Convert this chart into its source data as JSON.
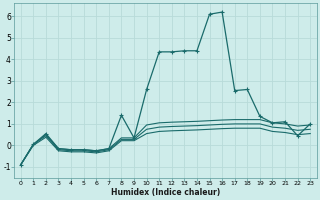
{
  "xlabel": "Humidex (Indice chaleur)",
  "bg_color": "#ceecea",
  "grid_color": "#b8dbd9",
  "line_color": "#1a6b6b",
  "xlim": [
    -0.5,
    23.5
  ],
  "ylim": [
    -1.5,
    6.6
  ],
  "xticks": [
    0,
    1,
    2,
    3,
    4,
    5,
    6,
    7,
    8,
    9,
    10,
    11,
    12,
    13,
    14,
    15,
    16,
    17,
    18,
    19,
    20,
    21,
    22,
    23
  ],
  "yticks": [
    -1,
    0,
    1,
    2,
    3,
    4,
    5,
    6
  ],
  "series_main": {
    "x": [
      0,
      1,
      2,
      3,
      4,
      5,
      6,
      7,
      8,
      9,
      10,
      11,
      12,
      13,
      14,
      15,
      16,
      17,
      18,
      19,
      20,
      21,
      22,
      23
    ],
    "y": [
      -0.9,
      0.05,
      0.55,
      -0.15,
      -0.2,
      -0.2,
      -0.25,
      -0.15,
      1.4,
      0.35,
      2.6,
      4.35,
      4.35,
      4.4,
      4.4,
      6.1,
      6.2,
      2.55,
      2.6,
      1.35,
      1.05,
      1.1,
      0.45,
      1.0
    ]
  },
  "series_line1": {
    "x": [
      0,
      1,
      2,
      3,
      4,
      5,
      6,
      7,
      8,
      9,
      10,
      11,
      12,
      13,
      14,
      15,
      16,
      17,
      18,
      19,
      20,
      21,
      22,
      23
    ],
    "y": [
      -0.9,
      0.05,
      0.5,
      -0.15,
      -0.2,
      -0.2,
      -0.25,
      -0.15,
      0.35,
      0.35,
      0.95,
      1.05,
      1.08,
      1.1,
      1.12,
      1.15,
      1.18,
      1.2,
      1.2,
      1.2,
      1.05,
      1.0,
      0.9,
      0.95
    ]
  },
  "series_line2": {
    "x": [
      0,
      1,
      2,
      3,
      4,
      5,
      6,
      7,
      8,
      9,
      10,
      11,
      12,
      13,
      14,
      15,
      16,
      17,
      18,
      19,
      20,
      21,
      22,
      23
    ],
    "y": [
      -0.9,
      0.05,
      0.45,
      -0.2,
      -0.25,
      -0.25,
      -0.3,
      -0.2,
      0.28,
      0.28,
      0.75,
      0.85,
      0.88,
      0.9,
      0.92,
      0.95,
      0.98,
      1.0,
      1.0,
      1.0,
      0.85,
      0.8,
      0.7,
      0.75
    ]
  },
  "series_line3": {
    "x": [
      0,
      1,
      2,
      3,
      4,
      5,
      6,
      7,
      8,
      9,
      10,
      11,
      12,
      13,
      14,
      15,
      16,
      17,
      18,
      19,
      20,
      21,
      22,
      23
    ],
    "y": [
      -0.9,
      0.0,
      0.38,
      -0.25,
      -0.3,
      -0.3,
      -0.35,
      -0.25,
      0.22,
      0.22,
      0.55,
      0.65,
      0.68,
      0.7,
      0.72,
      0.75,
      0.78,
      0.8,
      0.8,
      0.8,
      0.65,
      0.6,
      0.5,
      0.55
    ]
  }
}
